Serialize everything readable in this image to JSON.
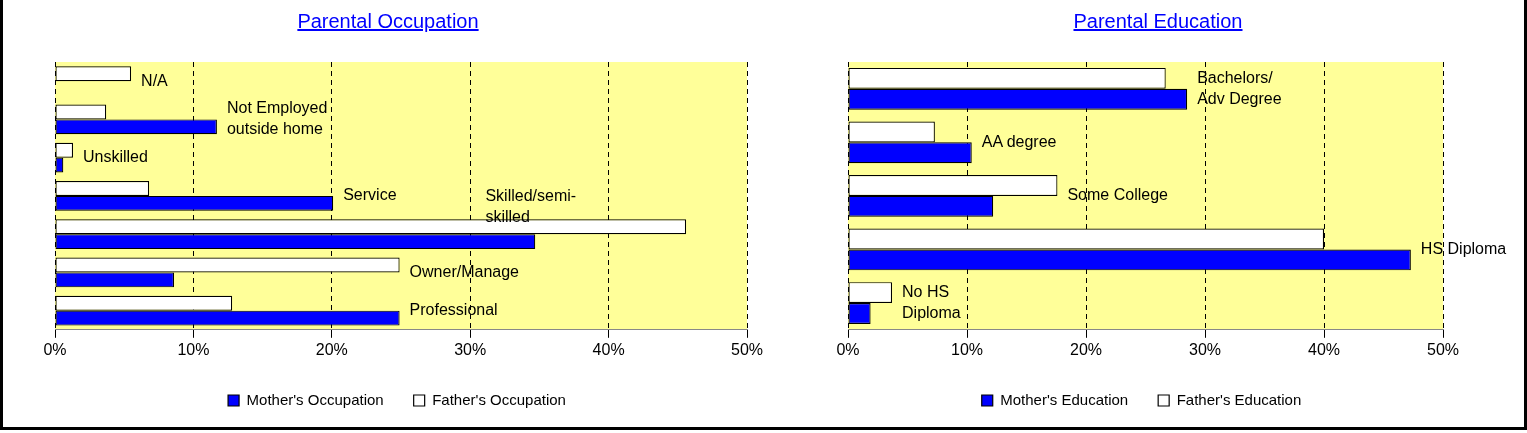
{
  "chart_data": [
    {
      "type": "bar",
      "orientation": "horizontal",
      "title": "Parental Occupation",
      "categories": [
        "N/A",
        "Not Employed\noutside home",
        "Unskilled",
        "Service",
        "Skilled/semi-\nskilled",
        "Owner/Manage",
        "Professional"
      ],
      "series": [
        {
          "name": "Mother's Occupation",
          "color": "#0000ff",
          "values": [
            null,
            11.7,
            0.6,
            20.1,
            34.7,
            8.6,
            24.9
          ]
        },
        {
          "name": "Father's Occupation",
          "color": "#ffffff",
          "values": [
            5.5,
            3.7,
            1.3,
            6.8,
            45.6,
            24.9,
            12.8
          ]
        }
      ],
      "xlim": [
        0,
        50
      ],
      "xticks": [
        {
          "value": 0,
          "label": "0%"
        },
        {
          "value": 10,
          "label": "10%"
        },
        {
          "value": 20,
          "label": "20%"
        },
        {
          "value": 30,
          "label": "30%"
        },
        {
          "value": 40,
          "label": "40%"
        },
        {
          "value": 50,
          "label": "50%"
        }
      ],
      "grid": "x",
      "legend": "bottom",
      "tick_labels": "x"
    },
    {
      "type": "bar",
      "orientation": "horizontal",
      "title": "Parental Education",
      "categories": [
        "Bachelors/\nAdv Degree",
        "AA degree",
        "Some College",
        "HS Diploma",
        "No HS\nDiploma"
      ],
      "series": [
        {
          "name": "Mother's Education",
          "color": "#0000ff",
          "values": [
            28.5,
            10.4,
            12.2,
            47.3,
            1.9
          ]
        },
        {
          "name": "Father's Education",
          "color": "#ffffff",
          "values": [
            26.7,
            7.3,
            17.6,
            40.0,
            3.7
          ]
        }
      ],
      "xlim": [
        0,
        50
      ],
      "xticks": [
        {
          "value": 0,
          "label": "0%"
        },
        {
          "value": 10,
          "label": "10%"
        },
        {
          "value": 20,
          "label": "20%"
        },
        {
          "value": 30,
          "label": "30%"
        },
        {
          "value": 40,
          "label": "40%"
        },
        {
          "value": 50,
          "label": "50%"
        }
      ],
      "grid": "x",
      "legend": "bottom",
      "tick_labels": "x"
    }
  ]
}
